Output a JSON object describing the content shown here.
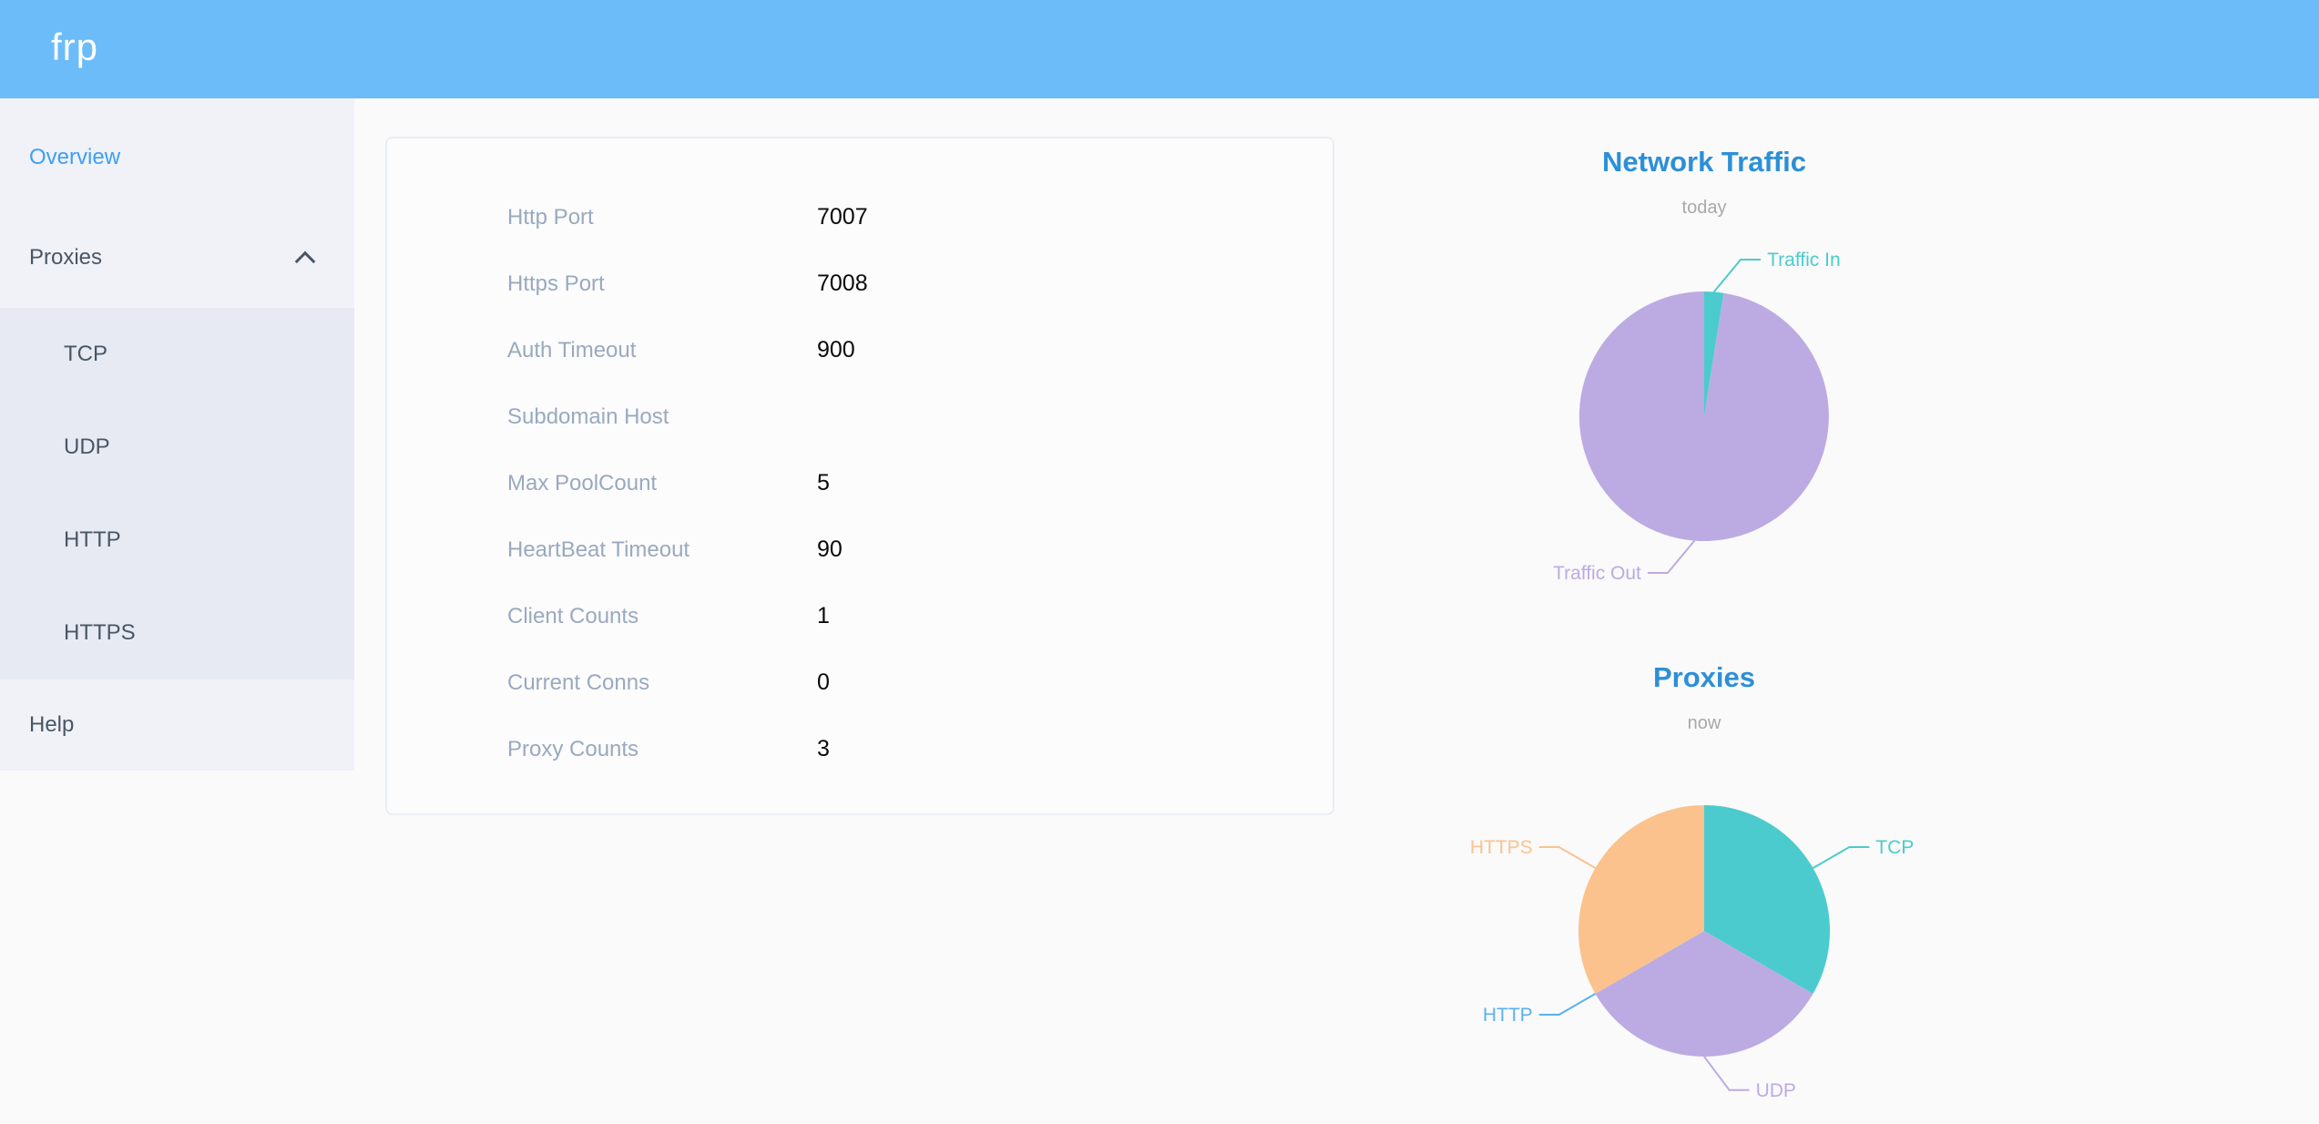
{
  "header": {
    "logo": "frp"
  },
  "colors": {
    "header_bg": "#6cbcfa",
    "active_link": "#3f9ef8",
    "chart_title": "#2c8fd8",
    "sidebar_bg": "#f0f2f7",
    "submenu_bg": "#e7eaf2",
    "label_gray": "#9aa9bf"
  },
  "sidebar": {
    "items": [
      {
        "label": "Overview",
        "active": true
      },
      {
        "label": "Proxies",
        "expanded": true,
        "children": [
          {
            "label": "TCP"
          },
          {
            "label": "UDP"
          },
          {
            "label": "HTTP"
          },
          {
            "label": "HTTPS"
          }
        ]
      },
      {
        "label": "Help"
      }
    ]
  },
  "overview": {
    "rows": [
      {
        "label": "Http Port",
        "value": "7007"
      },
      {
        "label": "Https Port",
        "value": "7008"
      },
      {
        "label": "Auth Timeout",
        "value": "900"
      },
      {
        "label": "Subdomain Host",
        "value": ""
      },
      {
        "label": "Max PoolCount",
        "value": "5"
      },
      {
        "label": "HeartBeat Timeout",
        "value": "90"
      },
      {
        "label": "Client Counts",
        "value": "1"
      },
      {
        "label": "Current Conns",
        "value": "0"
      },
      {
        "label": "Proxy Counts",
        "value": "3"
      }
    ]
  },
  "chart_data": [
    {
      "type": "pie",
      "title": "Network Traffic",
      "subtitle": "today",
      "legend_position": "none",
      "labels": "outside",
      "start_angle_deg": 0,
      "clockwise": true,
      "unit": "percent-of-total",
      "slices": [
        {
          "name": "Traffic In",
          "value": 2.5,
          "color": "#4bcbce"
        },
        {
          "name": "Traffic Out",
          "value": 97.5,
          "color": "#bcabe2"
        }
      ]
    },
    {
      "type": "pie",
      "title": "Proxies",
      "subtitle": "now",
      "legend_position": "none",
      "labels": "outside",
      "start_angle_deg": 0,
      "clockwise": true,
      "unit": "proxy-count",
      "slices": [
        {
          "name": "TCP",
          "value": 1,
          "color": "#4bcbce"
        },
        {
          "name": "UDP",
          "value": 1,
          "color": "#bcabe2"
        },
        {
          "name": "HTTP",
          "value": 0,
          "color": "#5ab1ef"
        },
        {
          "name": "HTTPS",
          "value": 1,
          "color": "#fbc28d"
        }
      ]
    }
  ]
}
